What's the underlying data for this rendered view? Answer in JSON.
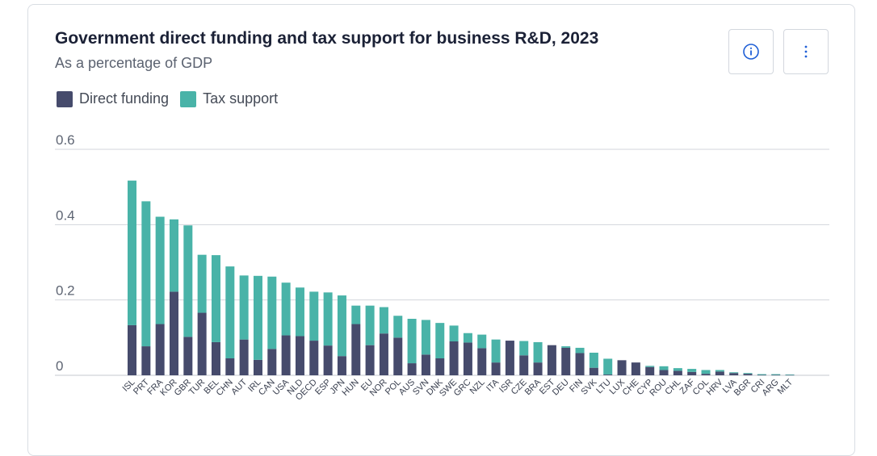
{
  "header": {
    "title": "Government direct funding and tax support for business R&D, 2023",
    "subtitle": "As a percentage of GDP"
  },
  "toolbar": {
    "info_icon": "info-icon",
    "menu_icon": "vertical-ellipsis-icon"
  },
  "legend": [
    {
      "label": "Direct funding",
      "color": "#464b6c"
    },
    {
      "label": "Tax support",
      "color": "#49b3a8"
    }
  ],
  "chart_data": {
    "type": "bar",
    "stacked": true,
    "title": "Government direct funding and tax support for business R&D, 2023",
    "ylabel": "",
    "xlabel": "",
    "ylim": [
      0,
      0.6
    ],
    "yticks": [
      "0",
      "0.2",
      "0.4",
      "0.6"
    ],
    "grid": true,
    "legend_position": "top-left",
    "categories": [
      "ISL",
      "PRT",
      "FRA",
      "KOR",
      "GBR",
      "TUR",
      "BEL",
      "CHN",
      "AUT",
      "IRL",
      "CAN",
      "USA",
      "NLD",
      "OECD",
      "ESP",
      "JPN",
      "HUN",
      "EU",
      "NOR",
      "POL",
      "AUS",
      "SVN",
      "DNK",
      "SWE",
      "GRC",
      "NZL",
      "ITA",
      "ISR",
      "CZE",
      "BRA",
      "EST",
      "DEU",
      "FIN",
      "SVK",
      "LTU",
      "LUX",
      "CHE",
      "CYP",
      "ROU",
      "CHL",
      "ZAF",
      "COL",
      "HRV",
      "LVA",
      "BGR",
      "CRI",
      "ARG",
      "MLT"
    ],
    "series": [
      {
        "name": "Direct funding",
        "color": "#464b6c",
        "values": [
          0.133,
          0.077,
          0.136,
          0.222,
          0.102,
          0.166,
          0.088,
          0.045,
          0.095,
          0.041,
          0.07,
          0.106,
          0.104,
          0.092,
          0.079,
          0.051,
          0.136,
          0.08,
          0.111,
          0.1,
          0.032,
          0.055,
          0.045,
          0.09,
          0.087,
          0.072,
          0.034,
          0.092,
          0.053,
          0.034,
          0.08,
          0.073,
          0.059,
          0.02,
          0.002,
          0.04,
          0.034,
          0.022,
          0.014,
          0.012,
          0.009,
          0.004,
          0.01,
          0.006,
          0.004,
          0.001,
          0.001,
          0.001
        ]
      },
      {
        "name": "Tax support",
        "color": "#49b3a8",
        "values": [
          0.384,
          0.385,
          0.285,
          0.192,
          0.296,
          0.154,
          0.231,
          0.244,
          0.17,
          0.223,
          0.192,
          0.14,
          0.129,
          0.13,
          0.141,
          0.161,
          0.049,
          0.105,
          0.07,
          0.058,
          0.118,
          0.092,
          0.094,
          0.042,
          0.025,
          0.036,
          0.061,
          0.0,
          0.038,
          0.054,
          0.0,
          0.004,
          0.014,
          0.04,
          0.042,
          0.0,
          0.0,
          0.003,
          0.01,
          0.007,
          0.008,
          0.01,
          0.004,
          0.002,
          0.002,
          0.002,
          0.002,
          0.001
        ]
      }
    ]
  }
}
